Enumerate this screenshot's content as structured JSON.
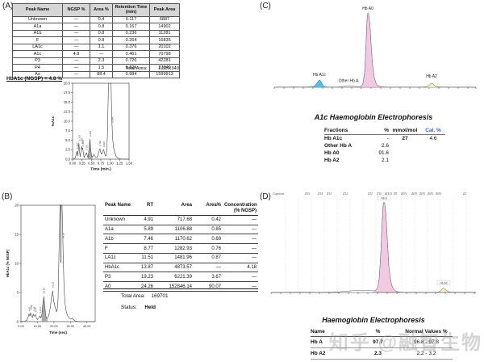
{
  "watermark": "知乎 @融智生物",
  "panel_a": {
    "label": "(A)",
    "table": {
      "headers": [
        "Peak Name",
        "NGSP %",
        "Area %",
        "Retention Time (min)",
        "Peak Area"
      ],
      "rows": [
        [
          "Unknown",
          "—",
          "0.4",
          "0.117",
          "6887"
        ],
        [
          "A1a",
          "—",
          "0.8",
          "0.167",
          "14902"
        ],
        [
          "A1b",
          "—",
          "0.8",
          "0.236",
          "11281"
        ],
        [
          "F",
          "—",
          "0.8",
          "0.264",
          "16835"
        ],
        [
          "LA1c",
          "—",
          "1.1",
          "0.376",
          "20102"
        ],
        [
          "A1c",
          "4.8",
          "—",
          "0.461",
          "70798"
        ],
        [
          "P3",
          "—",
          "2.3",
          "0.726",
          "42281"
        ],
        [
          "P4",
          "—",
          "1.5",
          "0.824",
          "27340"
        ],
        [
          "Ao",
          "—",
          "88.4",
          "0.984",
          "1599913"
        ]
      ],
      "total_label": "Total Area:",
      "total_value": "1,810,340"
    },
    "result_line": "HbA1c (NGSP) = 4.8 %",
    "chart": {
      "ylabel": "%A1c",
      "xlabel": "Time (min.)",
      "y_ticks": [
        "20.0",
        "17.5",
        "15.0",
        "12.5",
        "10.0",
        "7.5",
        "5.0",
        "2.5",
        "0.0"
      ],
      "x_ticks": [
        "0.00",
        "0.25",
        "0.50",
        "0.75",
        "1.00",
        "1.25",
        "1.50"
      ],
      "peak_labels": [
        "0.117",
        "0.167",
        "0.236",
        "0.264",
        "0.376",
        "0.461",
        "0.726",
        "0.824",
        "0.984"
      ]
    }
  },
  "panel_b": {
    "label": "(B)",
    "chart": {
      "ylabel": "HbA1c (% NGSP)",
      "xlabel": "Time (sec)",
      "y_ticks": [
        "20",
        "15",
        "10",
        "5",
        "0"
      ],
      "x_ticks": [
        "0.00",
        "10.00",
        "20.00",
        "30.00",
        "40.00"
      ],
      "peak_labels": [
        "4.91",
        "5.89",
        "7.46",
        "8.77",
        "11.51",
        "13.87",
        "19.23",
        "24.26"
      ]
    },
    "table": {
      "headers": [
        "Peak Name",
        "RT",
        "Area",
        "Area%",
        "Concentration (% NGSP)"
      ],
      "rows": [
        [
          "Unknown",
          "4.91",
          "717.68",
          "0.42",
          "—"
        ],
        [
          "A1a",
          "5.89",
          "1106.88",
          "0.65",
          "—"
        ],
        [
          "A1b",
          "7.46",
          "1170.62",
          "0.69",
          "—"
        ],
        [
          "F",
          "8.77",
          "1282.93",
          "0.76",
          "—"
        ],
        [
          "LA1c",
          "11.51",
          "1481.96",
          "0.87",
          "—"
        ],
        [
          "HbA1c",
          "13.87",
          "4873.57",
          "—",
          "4.18"
        ],
        [
          "P3",
          "19.23",
          "6221.39",
          "3.67",
          "—"
        ],
        [
          "A0",
          "24.26",
          "152846.14",
          "90.07",
          "—"
        ]
      ],
      "total_label": "Total Area:",
      "total_value": "169701",
      "status_label": "Status:",
      "status_value": "Held"
    }
  },
  "panel_c": {
    "label": "(C)",
    "title": "A1c Haemoglobin Electrophoresis",
    "chart": {
      "peak_labels": [
        "Hb A1c",
        "Other Hb A",
        "Hb A0",
        "Hb A2"
      ]
    },
    "table": {
      "headers": [
        "Fractions",
        "%",
        "mmol/mol",
        "Cal. %"
      ],
      "rows": [
        [
          "Hb A1c",
          "-",
          "27",
          "4.6"
        ],
        [
          "Other Hb A",
          "2.6",
          "",
          ""
        ],
        [
          "Hb A0",
          "91.6",
          "",
          ""
        ],
        [
          "Hb A2",
          "2.1",
          "",
          ""
        ]
      ]
    }
  },
  "panel_d": {
    "label": "(D)",
    "title": "Haemoglobin Electrophoresis",
    "chart": {
      "captions": [
        "Captions",
        "Z15",
        "Z14",
        "Z13",
        "Z12",
        "Z11",
        "Z10",
        "Z(10)",
        "Z9",
        "Z(9)",
        "Z(8)",
        "Z(8)",
        "Z(8)",
        "Z(8)",
        "Z2"
      ],
      "peak_labels": [
        "Hb A",
        "Hb A2"
      ]
    },
    "table": {
      "headers": [
        "Name",
        "%",
        "Normal Values %"
      ],
      "rows": [
        [
          "Hb A",
          "97.7",
          "96.8 - 97.8"
        ],
        [
          "Hb A2",
          "2.3",
          "2.2 - 3.2"
        ]
      ]
    }
  },
  "colors": {
    "a1c_blue": "#4fc3e8",
    "a0_pink": "#f2c9e1",
    "a2_yellow": "#f5efc4",
    "cal_header_blue": "#3b5fc0"
  },
  "chart_data": [
    {
      "id": "panel-a-hplc-chromatogram",
      "type": "area",
      "title": "HbA1c (NGSP) = 4.8 %",
      "xlabel": "Time (min.)",
      "ylabel": "%A1c",
      "xlim": [
        0,
        1.5
      ],
      "ylim": [
        0,
        20
      ],
      "peaks": [
        {
          "name": "Unknown",
          "rt_min": 0.117,
          "area_pct": 0.4,
          "area": 6887
        },
        {
          "name": "A1a",
          "rt_min": 0.167,
          "area_pct": 0.8,
          "area": 14902
        },
        {
          "name": "A1b",
          "rt_min": 0.236,
          "area_pct": 0.8,
          "area": 11281
        },
        {
          "name": "F",
          "rt_min": 0.264,
          "area_pct": 0.8,
          "area": 16835
        },
        {
          "name": "LA1c",
          "rt_min": 0.376,
          "area_pct": 1.1,
          "area": 20102
        },
        {
          "name": "A1c",
          "rt_min": 0.461,
          "ngsp_pct": 4.8,
          "area": 70798
        },
        {
          "name": "P3",
          "rt_min": 0.726,
          "area_pct": 2.3,
          "area": 42281
        },
        {
          "name": "P4",
          "rt_min": 0.824,
          "area_pct": 1.5,
          "area": 27340
        },
        {
          "name": "Ao",
          "rt_min": 0.984,
          "area_pct": 88.4,
          "area": 1599913
        }
      ],
      "total_area": 1810340
    },
    {
      "id": "panel-b-chromatogram",
      "type": "area",
      "xlabel": "Time (sec)",
      "ylabel": "HbA1c (% NGSP)",
      "xlim": [
        0,
        45
      ],
      "ylim": [
        0,
        20
      ],
      "peaks": [
        {
          "name": "Unknown",
          "rt_sec": 4.91,
          "area": 717.68,
          "area_pct": 0.42
        },
        {
          "name": "A1a",
          "rt_sec": 5.89,
          "area": 1106.88,
          "area_pct": 0.65
        },
        {
          "name": "A1b",
          "rt_sec": 7.46,
          "area": 1170.62,
          "area_pct": 0.69
        },
        {
          "name": "F",
          "rt_sec": 8.77,
          "area": 1282.93,
          "area_pct": 0.76
        },
        {
          "name": "LA1c",
          "rt_sec": 11.51,
          "area": 1481.96,
          "area_pct": 0.87
        },
        {
          "name": "HbA1c",
          "rt_sec": 13.87,
          "area": 4873.57,
          "ngsp_pct": 4.18
        },
        {
          "name": "P3",
          "rt_sec": 19.23,
          "area": 6221.39,
          "area_pct": 3.67
        },
        {
          "name": "A0",
          "rt_sec": 24.26,
          "area": 152846.14,
          "area_pct": 90.07
        }
      ],
      "total_area": 169701,
      "status": "Held"
    },
    {
      "id": "panel-c-electropherogram",
      "type": "area",
      "title": "A1c Haemoglobin Electrophoresis",
      "fractions": [
        {
          "name": "Hb A1c",
          "pct": null,
          "mmol_mol": 27,
          "cal_pct": 4.6,
          "color": "#4fc3e8"
        },
        {
          "name": "Other Hb A",
          "pct": 2.6
        },
        {
          "name": "Hb A0",
          "pct": 91.6,
          "color": "#f2c9e1"
        },
        {
          "name": "Hb A2",
          "pct": 2.1,
          "color": "#f5efc4"
        }
      ]
    },
    {
      "id": "panel-d-electropherogram",
      "type": "area",
      "title": "Haemoglobin Electrophoresis",
      "fractions": [
        {
          "name": "Hb A",
          "pct": 97.7,
          "normal_range": "96.8 - 97.8",
          "color": "#f2c9e1"
        },
        {
          "name": "Hb A2",
          "pct": 2.3,
          "normal_range": "2.2 - 3.2",
          "color": "#f5efc4"
        }
      ]
    }
  ]
}
